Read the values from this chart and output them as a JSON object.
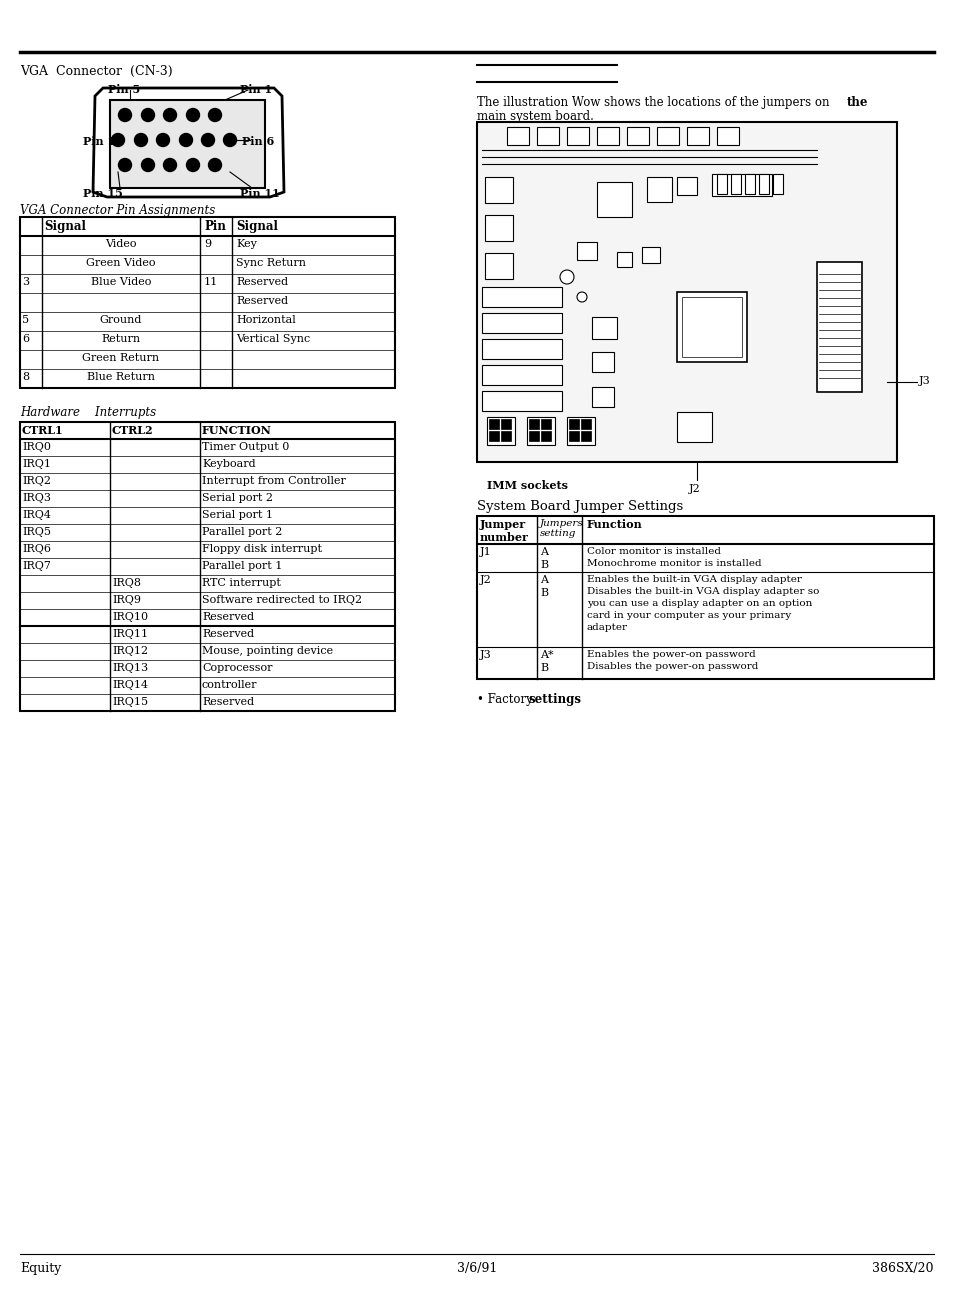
{
  "page_title_left": "VGA  Connector  (CN-3)",
  "right_section_title": "System Board Jumper Settings",
  "right_intro_normal": "The illustration Wow shows the locations of the jumpers on ",
  "right_intro_bold": "the",
  "right_intro_line2": "main system board.",
  "factory_settings_note": "• Factory ",
  "factory_settings_bold": "settings",
  "footer_left": "Equity",
  "footer_center": "3/6/91",
  "footer_right": "386SX/20",
  "vga_subtitle": "VGA Connector Pin Assignments",
  "hw_subtitle": "Hardware    Interrupts",
  "vga_table_rows": [
    [
      "",
      "Video",
      "9",
      "Key"
    ],
    [
      "",
      "Green Video",
      "",
      "Sync Return"
    ],
    [
      "3",
      "Blue Video",
      "11",
      "Reserved"
    ],
    [
      "",
      "",
      "",
      "Reserved"
    ],
    [
      "5",
      "Ground",
      "",
      "Horizontal"
    ],
    [
      "6",
      "Return",
      "",
      "Vertical Sync"
    ],
    [
      "",
      "Green Return",
      "",
      ""
    ],
    [
      "8",
      "Blue Return",
      "",
      ""
    ]
  ],
  "irq_table_rows": [
    [
      "IRQ0",
      "",
      "Timer Output 0"
    ],
    [
      "IRQ1",
      "",
      "Keyboard"
    ],
    [
      "IRQ2",
      "",
      "Interrupt from Controller"
    ],
    [
      "IRQ3",
      "",
      "Serial port 2"
    ],
    [
      "IRQ4",
      "",
      "Serial port 1"
    ],
    [
      "IRQ5",
      "",
      "Parallel port 2"
    ],
    [
      "IRQ6",
      "",
      "Floppy disk interrupt"
    ],
    [
      "IRQ7",
      "",
      "Parallel port 1"
    ],
    [
      "",
      "IRQ8",
      "RTC interrupt"
    ],
    [
      "",
      "IRQ9",
      "Software redirected to IRQ2"
    ],
    [
      "",
      "IRQ10",
      "Reserved"
    ],
    [
      "",
      "IRQ11",
      "Reserved"
    ],
    [
      "",
      "IRQ12",
      "Mouse, pointing device"
    ],
    [
      "",
      "IRQ13",
      "Coprocessor"
    ],
    [
      "",
      "IRQ14",
      "controller"
    ],
    [
      "",
      "IRQ15",
      "Reserved"
    ]
  ],
  "jumper_rows": [
    {
      "num": "J1",
      "settings": [
        "A",
        "B"
      ],
      "funcs": [
        "Color monitor is installed",
        "Monochrome monitor is installed"
      ]
    },
    {
      "num": "J2",
      "settings": [
        "A",
        "B"
      ],
      "funcs": [
        "Enables the built-in VGA display adapter",
        "Disables the built-in VGA display adapter so",
        "you can use a display adapter on an option",
        "card in your computer as your primary",
        "adapter"
      ]
    },
    {
      "num": "J3",
      "settings": [
        "A*",
        "B"
      ],
      "funcs": [
        "Enables the power-on password",
        "Disables the power-on password"
      ]
    }
  ],
  "bg_color": "#ffffff"
}
